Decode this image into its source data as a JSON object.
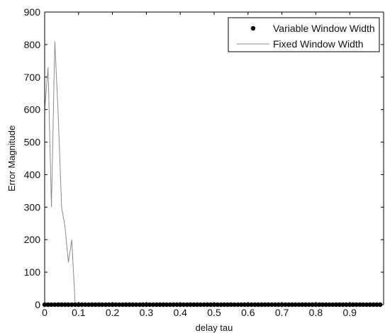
{
  "chart_data": {
    "type": "line",
    "title": "",
    "xlabel": "delay tau",
    "ylabel": "Error Magnitude",
    "xlim": [
      0,
      1
    ],
    "ylim": [
      0,
      900
    ],
    "xticks": [
      0,
      0.1,
      0.2,
      0.3,
      0.4,
      0.5,
      0.6,
      0.7,
      0.8,
      0.9
    ],
    "xtick_labels": [
      "0",
      "0.1",
      "0.2",
      "0.3",
      "0.4",
      "0.5",
      "0.6",
      "0.7",
      "0.8",
      "0.9"
    ],
    "yticks": [
      0,
      100,
      200,
      300,
      400,
      500,
      600,
      700,
      800,
      900
    ],
    "ytick_labels": [
      "0",
      "100",
      "200",
      "300",
      "400",
      "500",
      "600",
      "700",
      "800",
      "900"
    ],
    "grid": false,
    "legend_position": "top-right",
    "series": [
      {
        "name": "Variable Window Width",
        "style": "markers",
        "color": "#000000",
        "x": [
          0,
          0.01,
          0.02,
          0.03,
          0.04,
          0.05,
          0.06,
          0.07,
          0.08,
          0.09,
          0.1,
          0.11,
          0.12,
          0.13,
          0.14,
          0.15,
          0.16,
          0.17,
          0.18,
          0.19,
          0.2,
          0.21,
          0.22,
          0.23,
          0.24,
          0.25,
          0.26,
          0.27,
          0.28,
          0.29,
          0.3,
          0.31,
          0.32,
          0.33,
          0.34,
          0.35,
          0.36,
          0.37,
          0.38,
          0.39,
          0.4,
          0.41,
          0.42,
          0.43,
          0.44,
          0.45,
          0.46,
          0.47,
          0.48,
          0.49,
          0.5,
          0.51,
          0.52,
          0.53,
          0.54,
          0.55,
          0.56,
          0.57,
          0.58,
          0.59,
          0.6,
          0.61,
          0.62,
          0.63,
          0.64,
          0.65,
          0.66,
          0.67,
          0.68,
          0.69,
          0.7,
          0.71,
          0.72,
          0.73,
          0.74,
          0.75,
          0.76,
          0.77,
          0.78,
          0.79,
          0.8,
          0.81,
          0.82,
          0.83,
          0.84,
          0.85,
          0.86,
          0.87,
          0.88,
          0.89,
          0.9,
          0.91,
          0.92,
          0.93,
          0.94,
          0.95,
          0.96,
          0.97,
          0.98,
          0.99
        ],
        "y": [
          0,
          0,
          0,
          0,
          0,
          0,
          0,
          0,
          0,
          0,
          0,
          0,
          0,
          0,
          0,
          0,
          0,
          0,
          0,
          0,
          0,
          0,
          0,
          0,
          0,
          0,
          0,
          0,
          0,
          0,
          0,
          0,
          0,
          0,
          0,
          0,
          0,
          0,
          0,
          0,
          0,
          0,
          0,
          0,
          0,
          0,
          0,
          0,
          0,
          0,
          0,
          0,
          0,
          0,
          0,
          0,
          0,
          0,
          0,
          0,
          0,
          0,
          0,
          0,
          0,
          0,
          0,
          0,
          0,
          0,
          0,
          0,
          0,
          0,
          0,
          0,
          0,
          0,
          0,
          0,
          0,
          0,
          0,
          0,
          0,
          0,
          0,
          0,
          0,
          0,
          0,
          0,
          0,
          0,
          0,
          0,
          0,
          0,
          0,
          0
        ]
      },
      {
        "name": "Fixed Window Width",
        "style": "line",
        "color": "#8a8a8a",
        "x": [
          0,
          0.01,
          0.02,
          0.03,
          0.04,
          0.05,
          0.06,
          0.07,
          0.08,
          0.09,
          0.1,
          0.2,
          0.3,
          0.4,
          0.5,
          0.6,
          0.7,
          0.8,
          0.9,
          1.0
        ],
        "y": [
          600,
          730,
          300,
          810,
          580,
          300,
          240,
          130,
          200,
          0,
          0,
          0,
          0,
          0,
          0,
          0,
          0,
          0,
          0,
          0
        ]
      }
    ]
  }
}
